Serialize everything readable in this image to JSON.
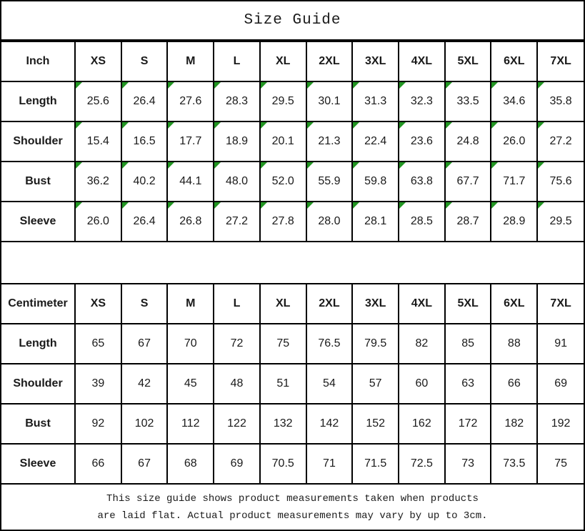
{
  "page": {
    "title": "Size Guide"
  },
  "colors": {
    "border": "#000000",
    "background": "#ffffff",
    "marker_green": "#229622"
  },
  "sizes": [
    "XS",
    "S",
    "M",
    "L",
    "XL",
    "2XL",
    "3XL",
    "4XL",
    "5XL",
    "6XL",
    "7XL"
  ],
  "tables": [
    {
      "id": "inch",
      "unit_label": "Inch",
      "has_corner_markers": true,
      "rows": [
        {
          "label": "Length",
          "values": [
            "25.6",
            "26.4",
            "27.6",
            "28.3",
            "29.5",
            "30.1",
            "31.3",
            "32.3",
            "33.5",
            "34.6",
            "35.8"
          ]
        },
        {
          "label": "Shoulder",
          "values": [
            "15.4",
            "16.5",
            "17.7",
            "18.9",
            "20.1",
            "21.3",
            "22.4",
            "23.6",
            "24.8",
            "26.0",
            "27.2"
          ]
        },
        {
          "label": "Bust",
          "values": [
            "36.2",
            "40.2",
            "44.1",
            "48.0",
            "52.0",
            "55.9",
            "59.8",
            "63.8",
            "67.7",
            "71.7",
            "75.6"
          ]
        },
        {
          "label": "Sleeve",
          "values": [
            "26.0",
            "26.4",
            "26.8",
            "27.2",
            "27.8",
            "28.0",
            "28.1",
            "28.5",
            "28.7",
            "28.9",
            "29.5"
          ]
        }
      ]
    },
    {
      "id": "centimeter",
      "unit_label": "Centimeter",
      "has_corner_markers": false,
      "rows": [
        {
          "label": "Length",
          "values": [
            "65",
            "67",
            "70",
            "72",
            "75",
            "76.5",
            "79.5",
            "82",
            "85",
            "88",
            "91"
          ]
        },
        {
          "label": "Shoulder",
          "values": [
            "39",
            "42",
            "45",
            "48",
            "51",
            "54",
            "57",
            "60",
            "63",
            "66",
            "69"
          ]
        },
        {
          "label": "Bust",
          "values": [
            "92",
            "102",
            "112",
            "122",
            "132",
            "142",
            "152",
            "162",
            "172",
            "182",
            "192"
          ]
        },
        {
          "label": "Sleeve",
          "values": [
            "66",
            "67",
            "68",
            "69",
            "70.5",
            "71",
            "71.5",
            "72.5",
            "73",
            "73.5",
            "75"
          ]
        }
      ]
    }
  ],
  "footer": {
    "line1": "This size guide shows product measurements taken when products",
    "line2": "are laid flat. Actual product measurements may vary by up to 3cm."
  }
}
